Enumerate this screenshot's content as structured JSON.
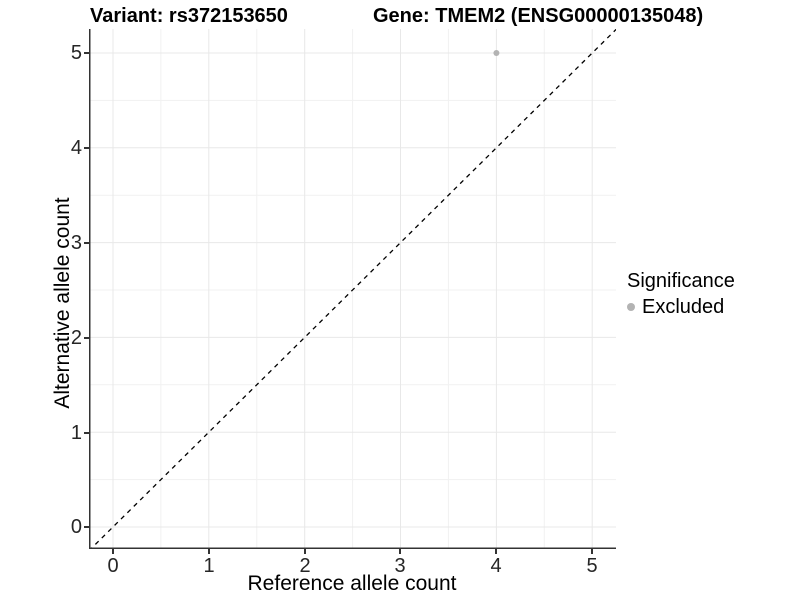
{
  "titles": {
    "variant": "Variant: rs372153650",
    "gene": "Gene: TMEM2 (ENSG00000135048)"
  },
  "axes": {
    "x": {
      "label": "Reference allele count",
      "ticks": [
        "0",
        "1",
        "2",
        "3",
        "4",
        "5"
      ]
    },
    "y": {
      "label": "Alternative allele count",
      "ticks": [
        "0",
        "1",
        "2",
        "3",
        "4",
        "5"
      ]
    }
  },
  "legend": {
    "title": "Significance",
    "items": [
      {
        "label": "Excluded",
        "color": "#b3b3b3"
      }
    ]
  },
  "colors": {
    "background": "#ffffff",
    "grid_major": "#e8e8e8",
    "grid_minor": "#f1f1f1",
    "axis_line": "#333333",
    "tick_text": "#262626",
    "point": "#b3b3b3",
    "identity_line": "#000000"
  },
  "chart_data": {
    "type": "scatter",
    "title": "Variant: rs372153650  |  Gene: TMEM2 (ENSG00000135048)",
    "xlabel": "Reference allele count",
    "ylabel": "Alternative allele count",
    "xlim": [
      -0.25,
      5.25
    ],
    "ylim": [
      -0.25,
      5.25
    ],
    "x_ticks": [
      0,
      1,
      2,
      3,
      4,
      5
    ],
    "y_ticks": [
      0,
      1,
      2,
      3,
      4,
      5
    ],
    "grid": true,
    "legend_position": "right",
    "series": [
      {
        "name": "Excluded",
        "color": "#b3b3b3",
        "points": [
          {
            "x": 4,
            "y": 5
          }
        ]
      }
    ],
    "reference_line": {
      "style": "dashed",
      "equation": "y = x"
    }
  }
}
